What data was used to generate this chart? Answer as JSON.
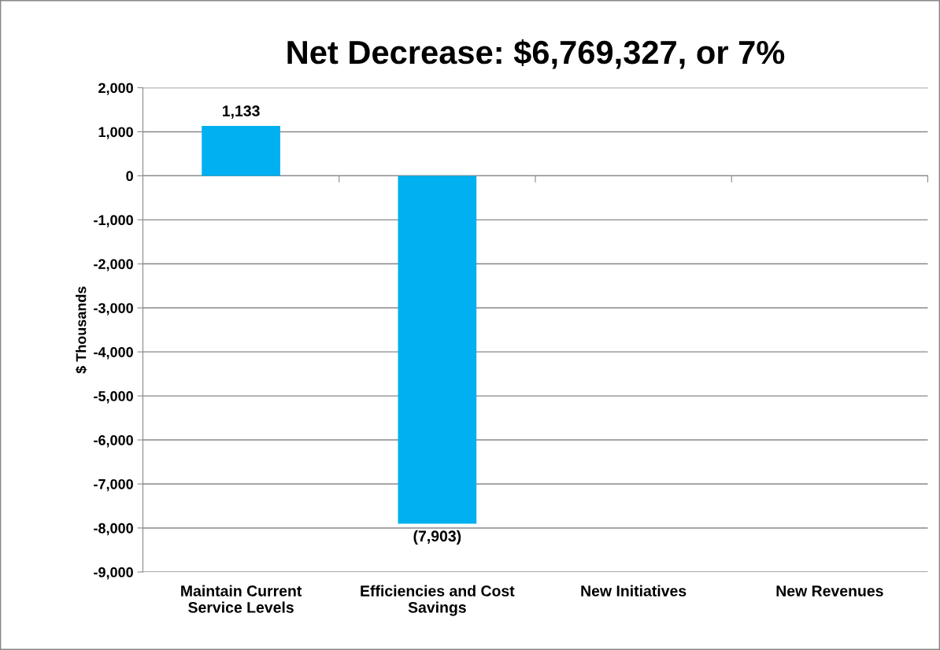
{
  "chart_data": {
    "type": "bar",
    "title": "Net Decrease: $6,769,327, or 7%",
    "ylabel": "$ Thousands",
    "categories": [
      "Maintain Current\nService Levels",
      "Efficiencies and Cost\nSavings",
      "New Initiatives",
      "New Revenues"
    ],
    "values": [
      1133,
      -7903,
      null,
      null
    ],
    "color": "#00b0f0",
    "value_labels": [
      "1,133",
      "(7,903)",
      null,
      null
    ],
    "ylim": [
      -9000,
      2000
    ],
    "yticks": [
      {
        "value": -9000,
        "label": "-9,000"
      },
      {
        "value": -8000,
        "label": "-8,000"
      },
      {
        "value": -7000,
        "label": "-7,000"
      },
      {
        "value": -6000,
        "label": "-6,000"
      },
      {
        "value": -5000,
        "label": "-5,000"
      },
      {
        "value": -4000,
        "label": "-4,000"
      },
      {
        "value": -3000,
        "label": "-3,000"
      },
      {
        "value": -2000,
        "label": "-2,000"
      },
      {
        "value": -1000,
        "label": "-1,000"
      },
      {
        "value": 0,
        "label": "0"
      },
      {
        "value": 1000,
        "label": "1,000"
      },
      {
        "value": 2000,
        "label": "2,000"
      }
    ],
    "grid": "y",
    "legend": false
  }
}
